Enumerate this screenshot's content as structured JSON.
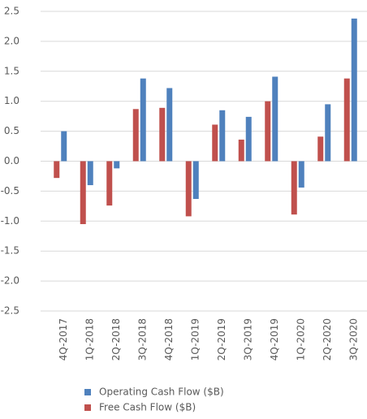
{
  "chart_data": {
    "type": "bar",
    "categories": [
      "4Q-2017",
      "1Q-2018",
      "2Q-2018",
      "3Q-2018",
      "4Q-2018",
      "1Q-2019",
      "2Q-2019",
      "3Q-2019",
      "4Q-2019",
      "1Q-2020",
      "2Q-2020",
      "3Q-2020"
    ],
    "series": [
      {
        "name": "Operating Cash Flow ($B)",
        "color": "#4f81bd",
        "values": [
          0.5,
          -0.4,
          -0.12,
          1.38,
          1.22,
          -0.63,
          0.85,
          0.74,
          1.41,
          -0.44,
          0.95,
          2.38
        ]
      },
      {
        "name": "Free Cash Flow ($B)",
        "color": "#c0504d",
        "values": [
          -0.28,
          -1.05,
          -0.74,
          0.87,
          0.89,
          -0.92,
          0.61,
          0.36,
          1.0,
          -0.89,
          0.41,
          1.38
        ]
      }
    ],
    "ylim": [
      -2.5,
      2.5
    ],
    "yticks": [
      2.5,
      {
        "value": 2.0,
        "label": "2.0"
      },
      1.5,
      {
        "value": 1.0,
        "label": "1.0"
      },
      0.5,
      {
        "value": 0.0,
        "label": "0.0"
      },
      -0.5,
      {
        "value": -1.0,
        "label": "-1.0"
      },
      -1.5,
      {
        "value": -2.0,
        "label": "-2.0"
      },
      -2.5
    ],
    "grid": true
  }
}
